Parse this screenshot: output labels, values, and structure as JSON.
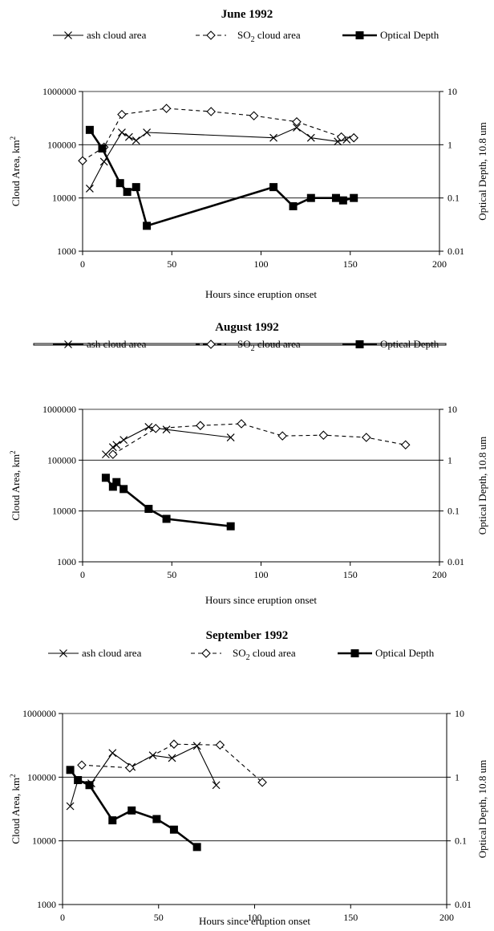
{
  "chart_data": [
    {
      "type": "line",
      "title": "June 1992",
      "xlabel": "Hours since eruption onset",
      "ylabel": "Cloud Area, km",
      "ylabel_superscript": "2",
      "y2label": "Optical Depth, 10.8 um",
      "xlim": [
        0,
        200
      ],
      "ylim": [
        1000,
        1000000
      ],
      "y2lim": [
        0.01,
        10
      ],
      "yscale": "log",
      "y2scale": "log",
      "x_ticks": [
        "0",
        "50",
        "100",
        "150",
        "200"
      ],
      "y_ticks": [
        "1000",
        "10000",
        "100000",
        "1000000"
      ],
      "y2_ticks": [
        "0.01",
        "0.1",
        "1",
        "10"
      ],
      "grid": true,
      "legend": "top",
      "series": [
        {
          "name": "ash cloud area",
          "axis": "left",
          "marker": "x",
          "style": "solid",
          "x": [
            4,
            12,
            22,
            26,
            30,
            36,
            107,
            120,
            128,
            143,
            148
          ],
          "y": [
            15000,
            48000,
            170000,
            140000,
            120000,
            170000,
            135000,
            210000,
            135000,
            115000,
            125000
          ]
        },
        {
          "name": "SO",
          "name_sub": "2",
          "name_suffix": " cloud area",
          "axis": "left",
          "marker": "diamond",
          "style": "dashed",
          "x": [
            0,
            12,
            22,
            47,
            72,
            96,
            120,
            145,
            152
          ],
          "y": [
            50000,
            90000,
            370000,
            480000,
            420000,
            350000,
            270000,
            140000,
            135000
          ]
        },
        {
          "name": "Optical Depth",
          "axis": "right",
          "marker": "square",
          "style": "solid-bold",
          "x": [
            4,
            11,
            21,
            25,
            30,
            36,
            107,
            118,
            128,
            142,
            146,
            152
          ],
          "y": [
            1.9,
            0.85,
            0.19,
            0.13,
            0.16,
            0.03,
            0.16,
            0.07,
            0.1,
            0.1,
            0.09,
            0.1
          ]
        }
      ]
    },
    {
      "type": "line",
      "title": "August 1992",
      "xlabel": "Hours since eruption onset",
      "ylabel": "Cloud Area, km",
      "ylabel_superscript": "2",
      "y2label": "Optical Depth, 10.8 um",
      "xlim": [
        0,
        200
      ],
      "ylim": [
        1000,
        1000000
      ],
      "y2lim": [
        0.01,
        10
      ],
      "yscale": "log",
      "y2scale": "log",
      "x_ticks": [
        "0",
        "50",
        "100",
        "150",
        "200"
      ],
      "y_ticks": [
        "1000",
        "10000",
        "100000",
        "1000000"
      ],
      "y2_ticks": [
        "0.01",
        "0.1",
        "1",
        "10"
      ],
      "grid": true,
      "legend": "top",
      "series": [
        {
          "name": "ash cloud area",
          "axis": "left",
          "marker": "x",
          "style": "solid",
          "x": [
            13,
            17,
            19,
            23,
            37,
            47,
            83
          ],
          "y": [
            130000,
            180000,
            200000,
            250000,
            450000,
            400000,
            280000
          ]
        },
        {
          "name": "SO",
          "name_sub": "2",
          "name_suffix": " cloud area",
          "axis": "left",
          "marker": "diamond",
          "style": "dashed",
          "x": [
            17,
            41,
            66,
            89,
            112,
            135,
            159,
            181
          ],
          "y": [
            130000,
            420000,
            480000,
            520000,
            300000,
            310000,
            280000,
            200000
          ]
        },
        {
          "name": "Optical Depth",
          "axis": "right",
          "marker": "square",
          "style": "solid-bold",
          "x": [
            13,
            17,
            19,
            23,
            37,
            47,
            83
          ],
          "y": [
            0.45,
            0.3,
            0.37,
            0.27,
            0.11,
            0.07,
            0.05
          ]
        }
      ]
    },
    {
      "type": "line",
      "title": "September 1992",
      "xlabel": "Hours since eruption onset",
      "ylabel": "Cloud Area, km",
      "ylabel_superscript": "2",
      "y2label": "Optical Depth, 10.8 um",
      "xlim": [
        0,
        200
      ],
      "ylim": [
        1000,
        1000000
      ],
      "y2lim": [
        0.01,
        10
      ],
      "yscale": "log",
      "y2scale": "log",
      "x_ticks": [
        "0",
        "50",
        "100",
        "150",
        "200"
      ],
      "y_ticks": [
        "1000",
        "10000",
        "100000",
        "1000000"
      ],
      "y2_ticks": [
        "0.01",
        "0.1",
        "1",
        "10"
      ],
      "grid": true,
      "legend": "top",
      "series": [
        {
          "name": "ash cloud area",
          "axis": "left",
          "marker": "x",
          "style": "solid",
          "x": [
            4,
            8,
            15,
            26,
            36,
            47,
            57,
            70,
            80
          ],
          "y": [
            35000,
            90000,
            80000,
            240000,
            145000,
            220000,
            200000,
            310000,
            75000
          ]
        },
        {
          "name": "SO",
          "name_sub": "2",
          "name_suffix": " cloud area",
          "axis": "left",
          "marker": "diamond",
          "style": "dashed",
          "x": [
            10,
            35,
            58,
            82,
            104
          ],
          "y": [
            155000,
            140000,
            330000,
            320000,
            83000
          ]
        },
        {
          "name": "Optical Depth",
          "axis": "right",
          "marker": "square",
          "style": "solid-bold",
          "x": [
            4,
            8,
            14,
            26,
            36,
            49,
            58,
            70
          ],
          "y": [
            1.3,
            0.9,
            0.75,
            0.21,
            0.3,
            0.22,
            0.15,
            0.08
          ]
        }
      ]
    }
  ]
}
